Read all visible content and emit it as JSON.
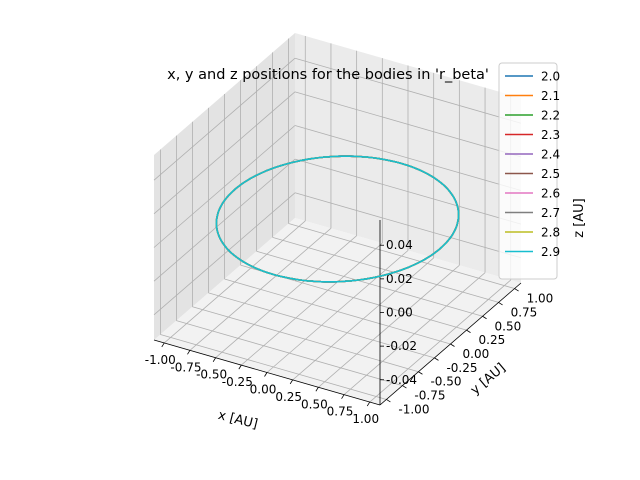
{
  "chart_data": {
    "type": "line",
    "projection": "3d",
    "title": "x, y and z positions for the bodies in 'r_beta'",
    "xlabel": "x [AU]",
    "ylabel": "y [AU]",
    "zlabel": "z [AU]",
    "xlim": [
      -1.1,
      1.1
    ],
    "ylim": [
      -1.1,
      1.1
    ],
    "zlim": [
      -0.055,
      0.055
    ],
    "x_ticks": [
      "-1.00",
      "-0.75",
      "-0.50",
      "-0.25",
      "0.00",
      "0.25",
      "0.50",
      "0.75",
      "1.00"
    ],
    "y_ticks": [
      "-1.00",
      "-0.75",
      "-0.50",
      "-0.25",
      "0.00",
      "0.25",
      "0.50",
      "0.75",
      "1.00"
    ],
    "z_ticks": [
      "-0.04",
      "-0.02",
      "0.00",
      "0.02",
      "0.04"
    ],
    "grid": true,
    "legend_position": "top-right",
    "series": [
      {
        "name": "2.0",
        "color": "#1f77b4",
        "orbit": {
          "shape": "circle",
          "center": [
            0,
            0,
            0
          ],
          "radius": 1.0
        }
      },
      {
        "name": "2.1",
        "color": "#ff7f0e",
        "orbit": {
          "shape": "circle",
          "center": [
            0,
            0,
            0
          ],
          "radius": 1.0
        }
      },
      {
        "name": "2.2",
        "color": "#2ca02c",
        "orbit": {
          "shape": "circle",
          "center": [
            0,
            0,
            0
          ],
          "radius": 1.0
        }
      },
      {
        "name": "2.3",
        "color": "#d62728",
        "orbit": {
          "shape": "circle",
          "center": [
            0,
            0,
            0
          ],
          "radius": 1.0
        }
      },
      {
        "name": "2.4",
        "color": "#9467bd",
        "orbit": {
          "shape": "circle",
          "center": [
            0,
            0,
            0
          ],
          "radius": 1.0
        }
      },
      {
        "name": "2.5",
        "color": "#8c564b",
        "orbit": {
          "shape": "circle",
          "center": [
            0,
            0,
            0
          ],
          "radius": 1.0
        }
      },
      {
        "name": "2.6",
        "color": "#e377c2",
        "orbit": {
          "shape": "circle",
          "center": [
            0,
            0,
            0
          ],
          "radius": 1.0
        }
      },
      {
        "name": "2.7",
        "color": "#7f7f7f",
        "orbit": {
          "shape": "circle",
          "center": [
            0,
            0,
            0
          ],
          "radius": 1.0
        }
      },
      {
        "name": "2.8",
        "color": "#bcbd22",
        "orbit": {
          "shape": "circle",
          "center": [
            0,
            0,
            0
          ],
          "radius": 1.0
        }
      },
      {
        "name": "2.9",
        "color": "#17becf",
        "orbit": {
          "shape": "circle",
          "center": [
            0,
            0,
            0
          ],
          "radius": 1.0
        }
      }
    ]
  }
}
